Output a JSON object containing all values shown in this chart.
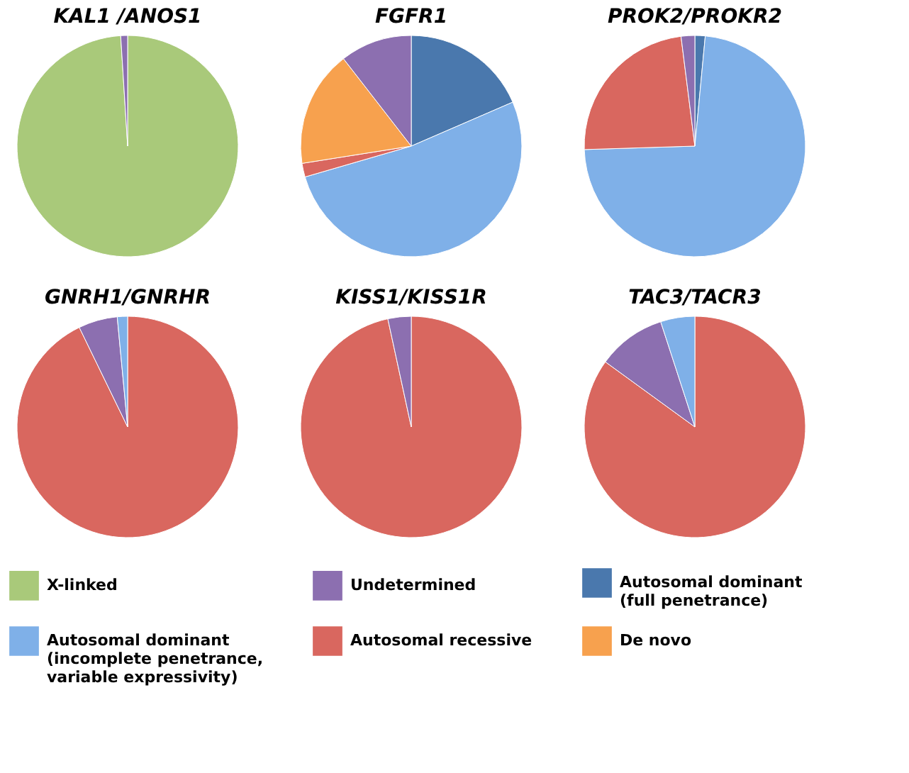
{
  "chart_data": [
    {
      "type": "pie",
      "title": "KAL1 /ANOS1",
      "legend": "bottom",
      "categories": [
        "X-linked",
        "Undetermined"
      ],
      "values": [
        99,
        1
      ],
      "colors": [
        "#a9c97a",
        "#8c6fb0"
      ]
    },
    {
      "type": "pie",
      "title": "FGFR1",
      "legend": "bottom",
      "categories": [
        "Autosomal dominant (full penetrance)",
        "Autosomal dominant (incomplete penetrance, variable expressivity)",
        "Autosomal recessive",
        "De novo",
        null
      ],
      "values": [
        18.5,
        52,
        2,
        17,
        10.5
      ],
      "colors": [
        "#4a78ad",
        "#7fb0e8",
        "#d9675f",
        "#f7a14e",
        "#8c6fb0"
      ]
    },
    {
      "type": "pie",
      "title": "PROK2/PROKR2",
      "categories": [
        null,
        null,
        null,
        null
      ],
      "values": [
        1.5,
        73,
        23.5,
        2
      ],
      "colors": [
        "#4a78ad",
        "#7fb0e8",
        "#d9675f",
        "#8c6fb0"
      ]
    },
    {
      "type": "pie",
      "title": "GNRH1/GNRHR",
      "categories": [
        null,
        null,
        null
      ],
      "values": [
        92.8,
        5.7,
        1.5
      ],
      "colors": [
        "#d9675f",
        "#8c6fb0",
        "#7fb0e8"
      ]
    },
    {
      "type": "pie",
      "title": "KISS1/KISS1R",
      "categories": [
        null,
        null
      ],
      "values": [
        96.6,
        3.4
      ],
      "colors": [
        "#d9675f",
        "#8c6fb0"
      ]
    },
    {
      "type": "pie",
      "title": "TAC3/TACR3",
      "categories": [
        null,
        null,
        null
      ],
      "values": [
        85,
        10,
        5
      ],
      "colors": [
        "#d9675f",
        "#8c6fb0",
        "#7fb0e8"
      ]
    }
  ]
}
